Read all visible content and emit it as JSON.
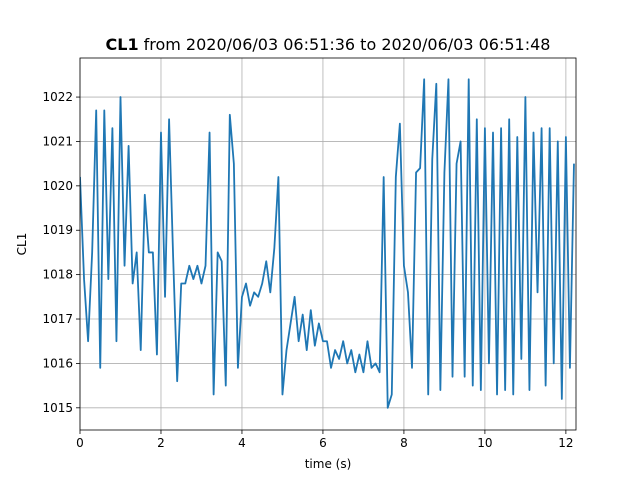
{
  "chart_data": {
    "type": "line",
    "title_label": "CL1",
    "title_range": "from 2020/06/03 06:51:36 to 2020/06/03 06:51:48",
    "xlabel": "time (s)",
    "ylabel": "CL1",
    "x": [
      0,
      0.1,
      0.2,
      0.3,
      0.4,
      0.5,
      0.6,
      0.7,
      0.8,
      0.9,
      1,
      1.1,
      1.2,
      1.3,
      1.4,
      1.5,
      1.6,
      1.7,
      1.8,
      1.9,
      2,
      2.1,
      2.2,
      2.3,
      2.4,
      2.5,
      2.6,
      2.7,
      2.8,
      2.9,
      3,
      3.1,
      3.2,
      3.3,
      3.4,
      3.5,
      3.6,
      3.7,
      3.8,
      3.9,
      4,
      4.1,
      4.2,
      4.3,
      4.4,
      4.5,
      4.6,
      4.7,
      4.8,
      4.9,
      5,
      5.1,
      5.2,
      5.3,
      5.4,
      5.5,
      5.6,
      5.7,
      5.8,
      5.9,
      6,
      6.1,
      6.2,
      6.3,
      6.4,
      6.5,
      6.6,
      6.7,
      6.8,
      6.9,
      7,
      7.1,
      7.2,
      7.3,
      7.4,
      7.5,
      7.6,
      7.7,
      7.8,
      7.9,
      8,
      8.1,
      8.2,
      8.3,
      8.4,
      8.5,
      8.6,
      8.7,
      8.8,
      8.9,
      9,
      9.1,
      9.2,
      9.3,
      9.4,
      9.5,
      9.6,
      9.7,
      9.8,
      9.9,
      10,
      10.1,
      10.2,
      10.3,
      10.4,
      10.5,
      10.6,
      10.7,
      10.8,
      10.9,
      11,
      11.1,
      11.2,
      11.3,
      11.4,
      11.5,
      11.6,
      11.7,
      11.8,
      11.9,
      12,
      12.1,
      12.2
    ],
    "values": [
      1020.2,
      1017.9,
      1016.5,
      1018.5,
      1021.7,
      1015.9,
      1021.7,
      1017.9,
      1021.3,
      1016.5,
      1022.0,
      1018.2,
      1020.9,
      1017.8,
      1018.5,
      1016.3,
      1019.8,
      1018.5,
      1018.5,
      1016.2,
      1021.2,
      1017.5,
      1021.5,
      1018.4,
      1015.6,
      1017.8,
      1017.8,
      1018.2,
      1017.9,
      1018.2,
      1017.8,
      1018.2,
      1021.2,
      1015.3,
      1018.5,
      1018.3,
      1015.5,
      1021.6,
      1020.5,
      1015.9,
      1017.5,
      1017.8,
      1017.3,
      1017.6,
      1017.5,
      1017.8,
      1018.3,
      1017.6,
      1018.6,
      1020.2,
      1015.3,
      1016.3,
      1016.9,
      1017.5,
      1016.5,
      1017.1,
      1016.3,
      1017.2,
      1016.4,
      1016.9,
      1016.5,
      1016.5,
      1015.9,
      1016.3,
      1016.1,
      1016.5,
      1016.0,
      1016.3,
      1015.8,
      1016.2,
      1015.8,
      1016.5,
      1015.9,
      1016.0,
      1015.8,
      1020.2,
      1015.0,
      1015.3,
      1020.2,
      1021.4,
      1018.2,
      1017.6,
      1015.9,
      1020.3,
      1020.4,
      1022.4,
      1015.3,
      1020.6,
      1022.3,
      1015.4,
      1020.3,
      1022.4,
      1015.7,
      1020.5,
      1021.0,
      1015.7,
      1022.4,
      1015.5,
      1021.5,
      1015.4,
      1021.3,
      1016.0,
      1021.2,
      1015.3,
      1021.3,
      1015.4,
      1021.5,
      1015.3,
      1021.1,
      1016.1,
      1022.0,
      1015.4,
      1021.2,
      1017.6,
      1021.3,
      1015.5,
      1021.3,
      1016.0,
      1021.0,
      1015.2,
      1021.1,
      1015.9,
      1020.5
    ],
    "color": "#1f77b4",
    "xlim": [
      0,
      12.25
    ],
    "xticks": [
      0,
      2,
      4,
      6,
      8,
      10,
      12
    ],
    "ylim": [
      1014.5,
      1022.88
    ],
    "yticks": [
      1015,
      1016,
      1017,
      1018,
      1019,
      1020,
      1021,
      1022
    ],
    "grid": true
  }
}
